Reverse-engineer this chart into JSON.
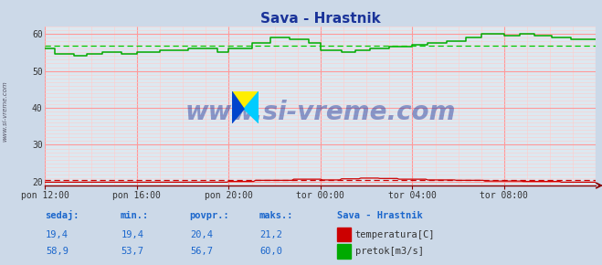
{
  "title": "Sava - Hrastnik",
  "bg_color": "#ccd9e8",
  "plot_bg_color": "#dde8f0",
  "grid_color_major": "#ff9999",
  "grid_color_minor": "#ffcccc",
  "xlim": [
    0,
    288
  ],
  "ylim": [
    19.0,
    62.0
  ],
  "yticks": [
    20,
    30,
    40,
    50,
    60
  ],
  "xtick_labels": [
    "pon 12:00",
    "pon 16:00",
    "pon 20:00",
    "tor 00:00",
    "tor 04:00",
    "tor 08:00"
  ],
  "xtick_positions": [
    0,
    48,
    96,
    144,
    192,
    240
  ],
  "temp_avg": 20.4,
  "flow_avg": 56.7,
  "temp_color": "#cc0000",
  "flow_color": "#00aa00",
  "flow_dashed_color": "#00cc00",
  "watermark": "www.si-vreme.com",
  "watermark_color": "#1a3399",
  "legend_title": "Sava - Hrastnik",
  "legend_item1": "temperatura[C]",
  "legend_item2": "pretok[m3/s]",
  "legend_color1": "#cc0000",
  "legend_color2": "#00aa00",
  "stats_headers": [
    "sedaj:",
    "min.:",
    "povpr.:",
    "maks.:"
  ],
  "temp_stats": [
    "19,4",
    "19,4",
    "20,4",
    "21,2"
  ],
  "flow_stats": [
    "58,9",
    "53,7",
    "56,7",
    "60,0"
  ],
  "text_color": "#1a66cc",
  "ylabel_text": "www.si-vreme.com",
  "arrow_color": "#880000"
}
